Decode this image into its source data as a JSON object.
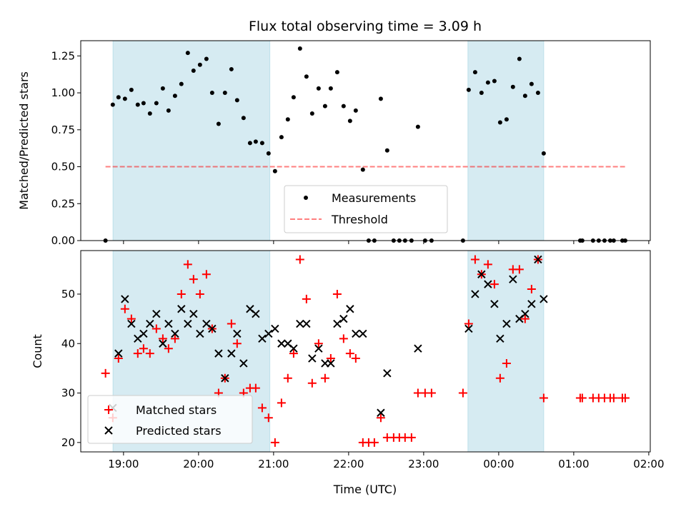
{
  "chart_data": [
    {
      "type": "scatter",
      "title": "Flux total observing time = 3.09 h",
      "ylabel": "Matched/Predicted stars",
      "ylim": [
        0,
        1.353
      ],
      "yticks": [
        0,
        0.25,
        0.5,
        0.75,
        1.0,
        1.25
      ],
      "ytick_labels": [
        "0.00",
        "0.25",
        "0.50",
        "0.75",
        "1.00",
        "1.25"
      ],
      "threshold": {
        "name": "Threshold",
        "value": 0.5,
        "x_range": [
          18.76,
          25.69
        ],
        "color": "#ff0000"
      },
      "legend": {
        "placement": "lower-center",
        "entries": [
          "Measurements",
          "Threshold"
        ]
      },
      "series_name": "Measurements"
    },
    {
      "type": "scatter",
      "xlabel": "Time (UTC)",
      "ylabel": "Count",
      "ylim": [
        18.1,
        58.8
      ],
      "yticks": [
        20,
        30,
        40,
        50
      ],
      "ytick_labels": [
        "20",
        "30",
        "40",
        "50"
      ],
      "legend": {
        "placement": "lower-left",
        "entries": [
          "Matched stars",
          "Predicted stars"
        ]
      },
      "matched_color": "#ff0000",
      "predicted_color": "#000000"
    }
  ],
  "shared": {
    "xlim": [
      18.43,
      26.02
    ],
    "xticks": [
      19,
      20,
      21,
      22,
      23,
      24,
      25,
      26
    ],
    "xtick_labels": [
      "19:00",
      "20:00",
      "21:00",
      "22:00",
      "23:00",
      "00:00",
      "01:00",
      "02:00"
    ],
    "shaded_intervals": [
      [
        18.86,
        20.95
      ],
      [
        23.59,
        24.6
      ]
    ],
    "shade_color": "#add8e6",
    "t": [
      18.76,
      18.857,
      18.933,
      19.019,
      19.105,
      19.19,
      19.267,
      19.352,
      19.438,
      19.524,
      19.6,
      19.686,
      19.771,
      19.857,
      19.933,
      20.019,
      20.105,
      20.181,
      20.267,
      20.352,
      20.438,
      20.514,
      20.6,
      20.686,
      20.762,
      20.848,
      20.933,
      21.019,
      21.105,
      21.19,
      21.267,
      21.352,
      21.438,
      21.514,
      21.6,
      21.686,
      21.762,
      21.848,
      21.933,
      22.019,
      22.095,
      22.19,
      22.267,
      22.343,
      22.429,
      22.514,
      22.6,
      22.676,
      22.752,
      22.838,
      22.924,
      23.019,
      23.105,
      23.524,
      23.6,
      23.686,
      23.771,
      23.857,
      23.943,
      24.019,
      24.105,
      24.19,
      24.276,
      24.352,
      24.438,
      24.524,
      24.6,
      25.086,
      25.114,
      25.257,
      25.333,
      25.41,
      25.486,
      25.533,
      25.648,
      25.686
    ],
    "ratio": [
      0,
      0.92,
      0.97,
      0.96,
      1.02,
      0.92,
      0.93,
      0.86,
      0.93,
      1.03,
      0.88,
      0.98,
      1.06,
      1.27,
      1.15,
      1.19,
      1.23,
      1.0,
      0.79,
      1.0,
      1.16,
      0.95,
      0.83,
      0.66,
      0.67,
      0.66,
      0.59,
      0.47,
      0.7,
      0.82,
      0.97,
      1.3,
      1.11,
      0.86,
      1.03,
      0.91,
      1.03,
      1.14,
      0.91,
      0.81,
      0.88,
      0.48,
      0,
      0,
      0.96,
      0.61,
      0,
      0,
      0,
      0,
      0.77,
      0,
      0,
      0,
      1.02,
      1.14,
      1.0,
      1.07,
      1.08,
      0.8,
      0.82,
      1.04,
      1.23,
      0.98,
      1.06,
      1.0,
      0.59,
      0,
      0,
      0,
      0,
      0,
      0,
      0,
      0,
      0
    ],
    "matched": [
      34,
      25,
      37,
      47,
      45,
      38,
      39,
      38,
      43,
      41,
      39,
      41,
      50,
      56,
      53,
      50,
      54,
      43,
      30,
      33,
      44,
      40,
      30,
      31,
      31,
      27,
      25,
      20,
      28,
      33,
      38,
      57,
      49,
      32,
      40,
      33,
      37,
      50,
      41,
      38,
      37,
      20,
      20,
      20,
      25,
      21,
      21,
      21,
      21,
      21,
      30,
      30,
      30,
      30,
      44,
      57,
      54,
      56,
      52,
      33,
      36,
      55,
      55,
      45,
      51,
      57,
      29,
      29,
      29,
      29,
      29,
      29,
      29,
      29,
      29,
      29
    ],
    "predicted": [
      null,
      27,
      38,
      49,
      44,
      41,
      42,
      44,
      46,
      40,
      44,
      42,
      47,
      44,
      46,
      42,
      44,
      43,
      38,
      33,
      38,
      42,
      36,
      47,
      46,
      41,
      42,
      43,
      40,
      40,
      39,
      44,
      44,
      37,
      39,
      36,
      36,
      44,
      45,
      47,
      42,
      42,
      null,
      null,
      26,
      34,
      null,
      null,
      null,
      null,
      39,
      null,
      null,
      null,
      43,
      50,
      54,
      52,
      48,
      41,
      44,
      53,
      45,
      46,
      48,
      57,
      49,
      null,
      null,
      null,
      null,
      null,
      null,
      null,
      null,
      null
    ]
  }
}
